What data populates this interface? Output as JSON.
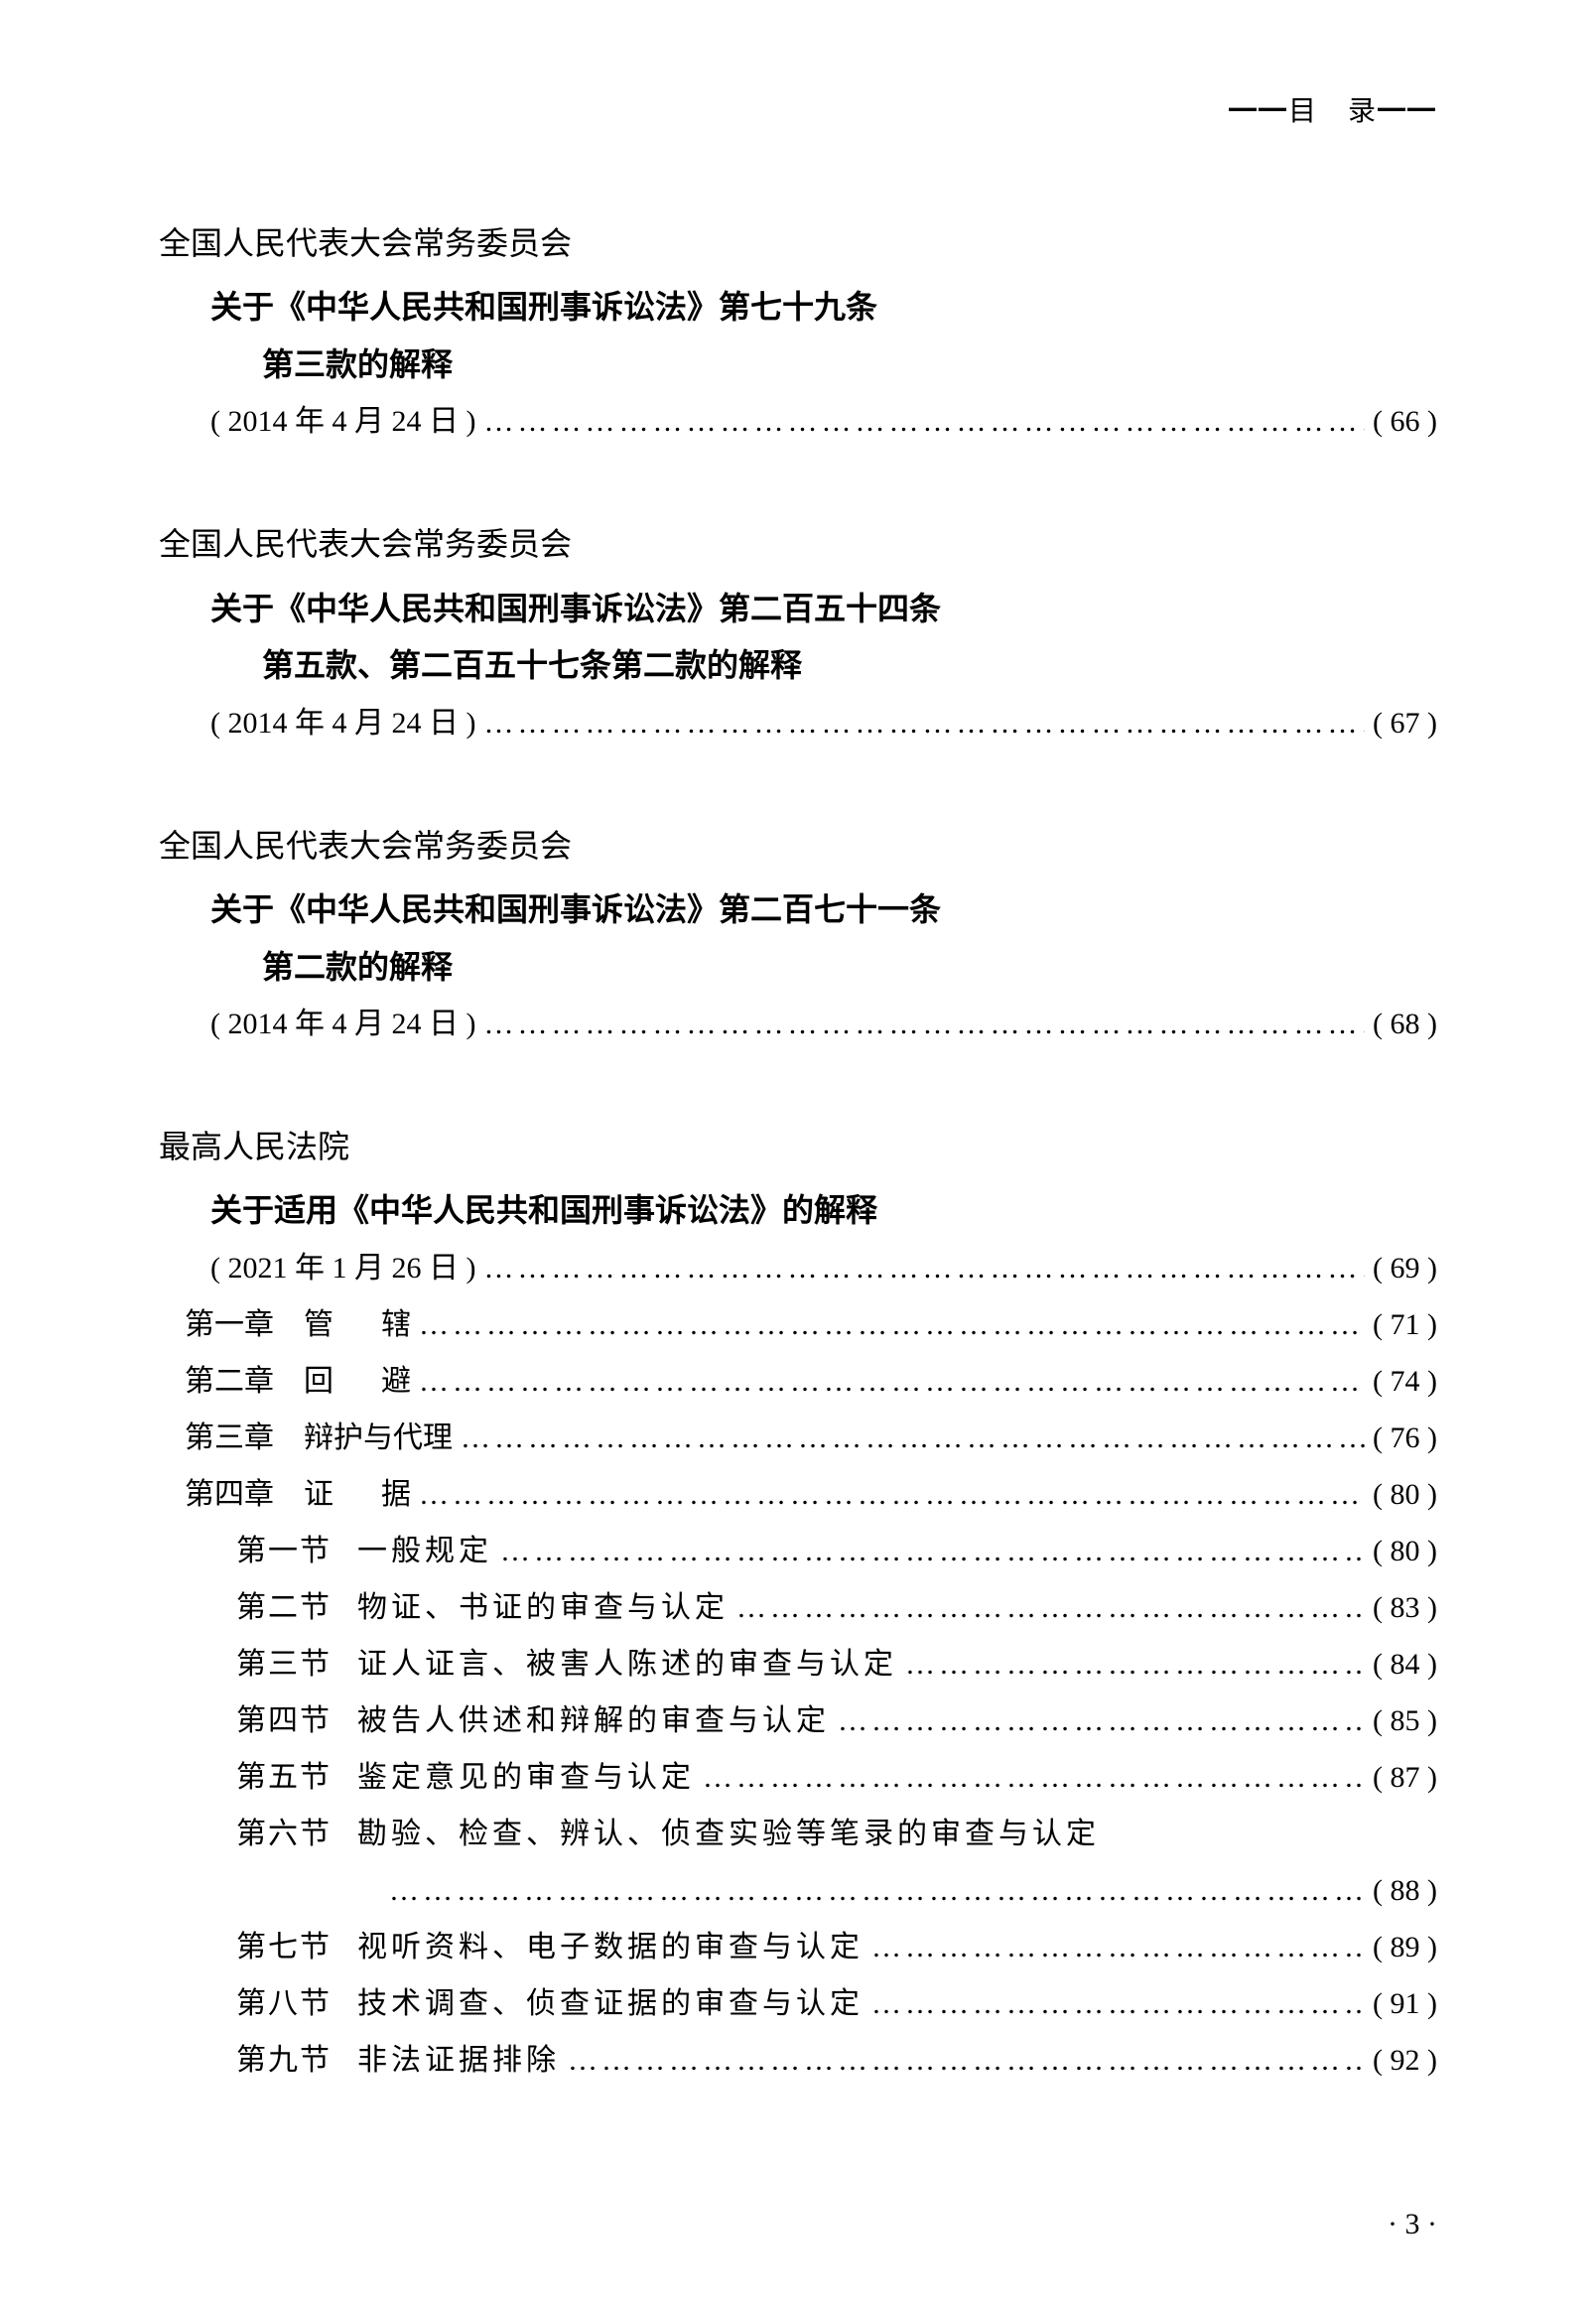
{
  "header": "━━目　录━━",
  "dots": "……………………………………………………………………………………………………",
  "entries": [
    {
      "org": "全国人民代表大会常务委员会",
      "title_lines": [
        "关于《中华人民共和国刑事诉讼法》第七十九条",
        "第三款的解释"
      ],
      "date": "( 2014 年 4 月 24 日 )",
      "page": "( 66 )"
    },
    {
      "org": "全国人民代表大会常务委员会",
      "title_lines": [
        "关于《中华人民共和国刑事诉讼法》第二百五十四条",
        "第五款、第二百五十七条第二款的解释"
      ],
      "date": "( 2014 年 4 月 24 日 )",
      "page": "( 67 )"
    },
    {
      "org": "全国人民代表大会常务委员会",
      "title_lines": [
        "关于《中华人民共和国刑事诉讼法》第二百七十一条",
        "第二款的解释"
      ],
      "date": "( 2014 年 4 月 24 日 )",
      "page": "( 68 )"
    }
  ],
  "entry4": {
    "org": "最高人民法院",
    "title": "关于适用《中华人民共和国刑事诉讼法》的解释",
    "date": "( 2021 年 1 月 26 日 )",
    "page": "( 69 )",
    "chapters": [
      {
        "label": "第一章",
        "title": "管辖",
        "spaced": true,
        "page": "( 71 )"
      },
      {
        "label": "第二章",
        "title": "回避",
        "spaced": true,
        "page": "( 74 )"
      },
      {
        "label": "第三章",
        "title": "辩护与代理",
        "spaced": false,
        "page": "( 76 )"
      },
      {
        "label": "第四章",
        "title": "证据",
        "spaced": true,
        "page": "( 80 )"
      }
    ],
    "sections": [
      {
        "label": "第一节",
        "title": "一般规定",
        "page": "( 80 )"
      },
      {
        "label": "第二节",
        "title": "物证、书证的审查与认定",
        "page": "( 83 )"
      },
      {
        "label": "第三节",
        "title": "证人证言、被害人陈述的审查与认定",
        "page": "( 84 )"
      },
      {
        "label": "第四节",
        "title": "被告人供述和辩解的审查与认定",
        "page": "( 85 )"
      },
      {
        "label": "第五节",
        "title": "鉴定意见的审查与认定",
        "page": "( 87 )"
      }
    ],
    "section6": {
      "label": "第六节",
      "title": "勘验、检查、辨认、侦查实验等笔录的审查与认定",
      "page": "( 88 )"
    },
    "sections_after": [
      {
        "label": "第七节",
        "title": "视听资料、电子数据的审查与认定",
        "page": "( 89 )"
      },
      {
        "label": "第八节",
        "title": "技术调查、侦查证据的审查与认定",
        "page": "( 91 )"
      },
      {
        "label": "第九节",
        "title": "非法证据排除",
        "page": "( 92 )"
      }
    ]
  },
  "footer": "· 3 ·"
}
